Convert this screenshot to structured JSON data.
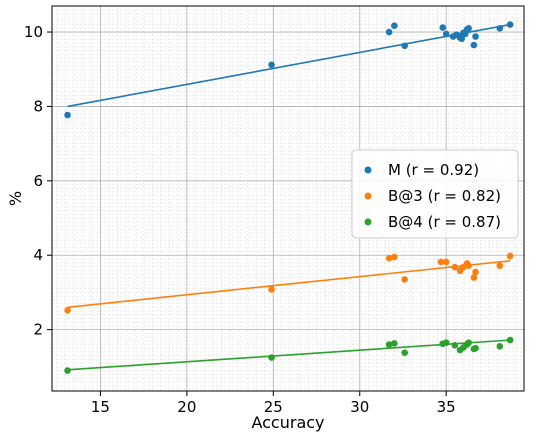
{
  "chart_data": {
    "type": "scatter",
    "xlabel": "Accuracy",
    "ylabel": "%",
    "xlim": [
      12.2,
      39.5
    ],
    "ylim": [
      0.35,
      10.7
    ],
    "xticks": [
      15,
      20,
      25,
      30,
      35
    ],
    "yticks": [
      2,
      4,
      6,
      8,
      10
    ],
    "grid": true,
    "minor_grid": true,
    "legend_position": "center-right",
    "series": [
      {
        "name": "M (r = 0.92)",
        "color": "#1f77b4",
        "fit": [
          [
            13.1,
            8.0
          ],
          [
            38.7,
            10.2
          ]
        ],
        "points": [
          [
            13.1,
            7.77
          ],
          [
            24.9,
            9.12
          ],
          [
            31.7,
            10.0
          ],
          [
            32.0,
            10.17
          ],
          [
            32.6,
            9.63
          ],
          [
            34.8,
            10.12
          ],
          [
            35.0,
            9.95
          ],
          [
            35.4,
            9.88
          ],
          [
            35.6,
            9.93
          ],
          [
            35.8,
            9.85
          ],
          [
            35.9,
            9.82
          ],
          [
            36.0,
            9.98
          ],
          [
            36.1,
            9.95
          ],
          [
            36.2,
            10.07
          ],
          [
            36.3,
            10.1
          ],
          [
            36.6,
            9.65
          ],
          [
            36.7,
            9.88
          ],
          [
            38.1,
            10.1
          ],
          [
            38.7,
            10.2
          ]
        ]
      },
      {
        "name": "B@3 (r = 0.82)",
        "color": "#ff7f0e",
        "fit": [
          [
            13.1,
            2.6
          ],
          [
            38.7,
            3.85
          ]
        ],
        "points": [
          [
            13.1,
            2.52
          ],
          [
            24.9,
            3.08
          ],
          [
            31.7,
            3.92
          ],
          [
            32.0,
            3.95
          ],
          [
            32.6,
            3.35
          ],
          [
            34.7,
            3.82
          ],
          [
            35.0,
            3.82
          ],
          [
            35.5,
            3.68
          ],
          [
            35.8,
            3.58
          ],
          [
            36.0,
            3.68
          ],
          [
            36.2,
            3.78
          ],
          [
            36.3,
            3.72
          ],
          [
            36.6,
            3.4
          ],
          [
            36.7,
            3.55
          ],
          [
            38.1,
            3.72
          ],
          [
            38.7,
            3.98
          ]
        ]
      },
      {
        "name": "B@4 (r = 0.87)",
        "color": "#2ca02c",
        "fit": [
          [
            13.1,
            0.92
          ],
          [
            38.7,
            1.72
          ]
        ],
        "points": [
          [
            13.1,
            0.9
          ],
          [
            24.9,
            1.25
          ],
          [
            31.7,
            1.6
          ],
          [
            32.0,
            1.63
          ],
          [
            32.6,
            1.38
          ],
          [
            34.8,
            1.62
          ],
          [
            35.0,
            1.65
          ],
          [
            35.5,
            1.58
          ],
          [
            35.8,
            1.45
          ],
          [
            36.0,
            1.52
          ],
          [
            36.2,
            1.6
          ],
          [
            36.3,
            1.65
          ],
          [
            36.6,
            1.48
          ],
          [
            36.7,
            1.5
          ],
          [
            38.1,
            1.55
          ],
          [
            38.7,
            1.72
          ]
        ]
      }
    ]
  }
}
